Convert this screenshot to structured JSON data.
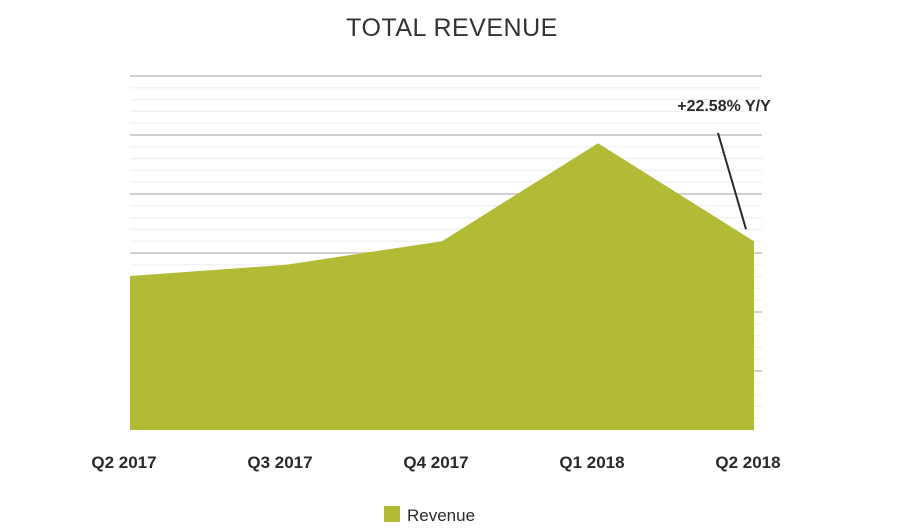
{
  "chart_data": {
    "type": "area",
    "title": "TOTAL REVENUE",
    "categories": [
      "Q2 2017",
      "Q3 2017",
      "Q4 2017",
      "Q1 2018",
      "Q2 2018"
    ],
    "series": [
      {
        "name": "Revenue",
        "values": [
          2.61,
          2.8,
          3.2,
          4.86,
          3.2
        ],
        "color": "#b2bb36"
      }
    ],
    "ylim": [
      0,
      6
    ],
    "y_major_step": 1,
    "y_minor_step": 0.2,
    "grid": true,
    "y_tick_labels_shown": false,
    "legend": "bottom",
    "annotation": {
      "text": "+22.58% Y/Y",
      "target_category": "Q2 2018"
    }
  }
}
